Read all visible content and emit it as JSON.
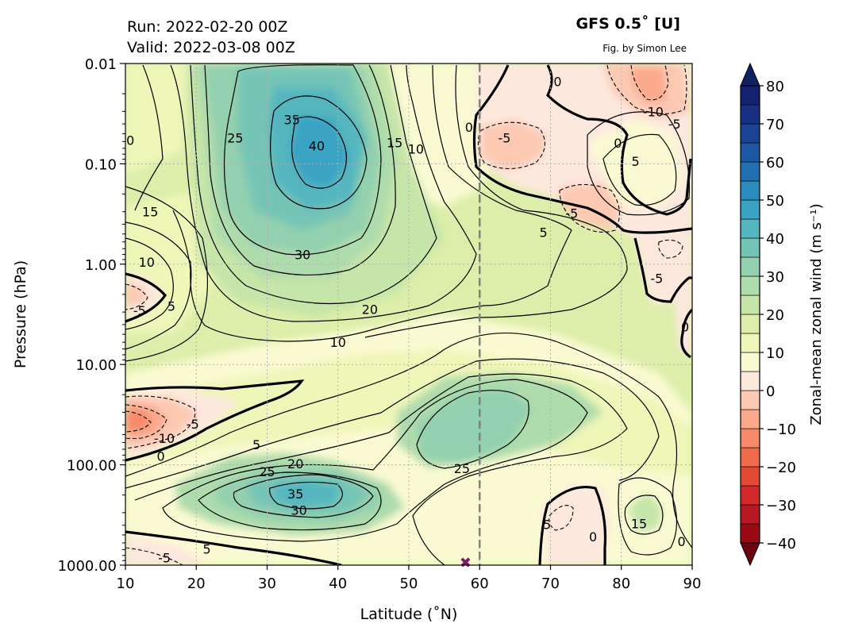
{
  "header": {
    "run": "Run: 2022-02-20 00Z",
    "valid": "Valid: 2022-03-08 00Z",
    "title": "GFS 0.5˚ [U]",
    "credit": "Fig. by Simon Lee"
  },
  "chart_data": {
    "type": "contour",
    "xlabel": "Latitude (˚N)",
    "ylabel": "Pressure (hPa)",
    "colorbar_label": "Zonal-mean zonal wind (m s⁻¹)",
    "xlim": [
      10,
      90
    ],
    "ylim": [
      1000,
      0.01
    ],
    "y_scale": "log",
    "grid": true,
    "x_ticks": [
      10,
      20,
      30,
      40,
      50,
      60,
      70,
      80,
      90
    ],
    "y_ticks": [
      "0.01",
      "0.10",
      "1.00",
      "10.00",
      "100.00",
      "1000.00"
    ],
    "y_tick_values": [
      0.01,
      0.1,
      1,
      10,
      100,
      1000
    ],
    "colorbar_ticks": [
      80,
      70,
      60,
      50,
      40,
      30,
      20,
      10,
      0,
      -10,
      -20,
      -30,
      -40
    ],
    "colorbar_levels": [
      -40,
      -35,
      -30,
      -25,
      -20,
      -15,
      -10,
      -5,
      0,
      5,
      10,
      15,
      20,
      25,
      30,
      35,
      40,
      45,
      50,
      55,
      60,
      65,
      70,
      75,
      80
    ],
    "colorbar_colors": [
      "#9a0a14",
      "#b81823",
      "#d22a2a",
      "#e34a33",
      "#f06a4c",
      "#f78a6a",
      "#fba98c",
      "#fdc9b3",
      "#fde8de",
      "#fafad2",
      "#eef6b8",
      "#dceea9",
      "#c6e5a8",
      "#aedcac",
      "#93d0af",
      "#75c5b6",
      "#55b6bf",
      "#3aa3c4",
      "#2b8bbd",
      "#2370b0",
      "#1f58a2",
      "#1b4394",
      "#182f83",
      "#142170",
      "#0d1a5b"
    ],
    "extend_colors": {
      "low": "#6d0510",
      "high": "#0f2160"
    },
    "reference_line_lat": 60,
    "marker": {
      "lat": 58,
      "pressure": 1000,
      "color": "#7b1a66"
    },
    "contour_labels": [
      {
        "text": "35",
        "lat": 33.5,
        "p": 0.036
      },
      {
        "text": "40",
        "lat": 37,
        "p": 0.066
      },
      {
        "text": "25",
        "lat": 25.5,
        "p": 0.055
      },
      {
        "text": "0",
        "lat": 10.7,
        "p": 0.058
      },
      {
        "text": "15",
        "lat": 13.5,
        "p": 0.3
      },
      {
        "text": "15",
        "lat": 48,
        "p": 0.061
      },
      {
        "text": "10",
        "lat": 51,
        "p": 0.071
      },
      {
        "text": "0",
        "lat": 58.5,
        "p": 0.043
      },
      {
        "text": "-5",
        "lat": 63.5,
        "p": 0.055
      },
      {
        "text": "0",
        "lat": 71,
        "p": 0.015
      },
      {
        "text": "-10",
        "lat": 84.5,
        "p": 0.03
      },
      {
        "text": "-5",
        "lat": 87.5,
        "p": 0.04
      },
      {
        "text": "0",
        "lat": 79.5,
        "p": 0.062
      },
      {
        "text": "5",
        "lat": 82,
        "p": 0.094
      },
      {
        "text": "-5",
        "lat": 73,
        "p": 0.31
      },
      {
        "text": "5",
        "lat": 69,
        "p": 0.48
      },
      {
        "text": "-5",
        "lat": 85,
        "p": 1.38
      },
      {
        "text": "30",
        "lat": 35,
        "p": 0.8
      },
      {
        "text": "10",
        "lat": 13,
        "p": 0.95
      },
      {
        "text": "5",
        "lat": 16.5,
        "p": 2.6
      },
      {
        "text": "-5",
        "lat": 12,
        "p": 2.9
      },
      {
        "text": "20",
        "lat": 44.5,
        "p": 2.8
      },
      {
        "text": "0",
        "lat": 89,
        "p": 4.2
      },
      {
        "text": "10",
        "lat": 40,
        "p": 6.0
      },
      {
        "text": "-10",
        "lat": 15.5,
        "p": 54
      },
      {
        "text": "-5",
        "lat": 19.5,
        "p": 39
      },
      {
        "text": "0",
        "lat": 15,
        "p": 82
      },
      {
        "text": "5",
        "lat": 28.5,
        "p": 63
      },
      {
        "text": "20",
        "lat": 34,
        "p": 97
      },
      {
        "text": "25",
        "lat": 30,
        "p": 117
      },
      {
        "text": "35",
        "lat": 34,
        "p": 194
      },
      {
        "text": "30",
        "lat": 34.5,
        "p": 283
      },
      {
        "text": "25",
        "lat": 57.5,
        "p": 108
      },
      {
        "text": "5",
        "lat": 69.5,
        "p": 390
      },
      {
        "text": "15",
        "lat": 82.5,
        "p": 385
      },
      {
        "text": "0",
        "lat": 76,
        "p": 520
      },
      {
        "text": "0",
        "lat": 88.5,
        "p": 580
      },
      {
        "text": "5",
        "lat": 21.5,
        "p": 690
      },
      {
        "text": "-5",
        "lat": 15.5,
        "p": 840
      }
    ]
  }
}
